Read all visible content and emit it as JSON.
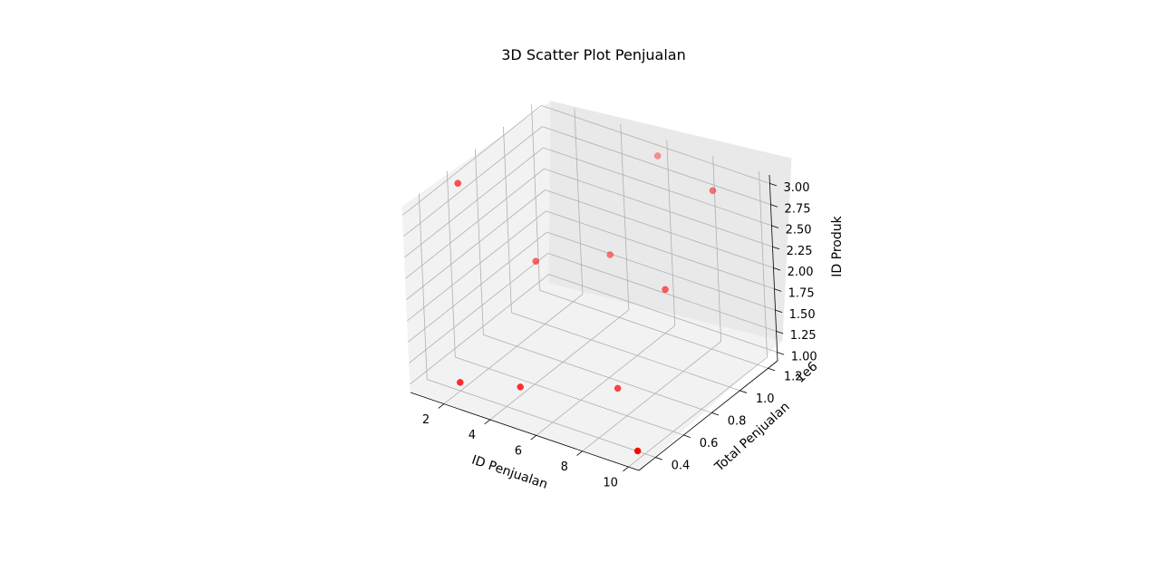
{
  "chart_data": {
    "type": "scatter",
    "projection": "3d",
    "title": "3D Scatter Plot Penjualan",
    "xlabel": "ID Penjualan",
    "ylabel": "Total Penjualan",
    "zlabel": "ID Produk",
    "y_offset_text": "1e6",
    "xticks": [
      "2",
      "4",
      "6",
      "8",
      "10"
    ],
    "yticks": [
      "0.4",
      "0.6",
      "0.8",
      "1.0",
      "1.2"
    ],
    "zticks": [
      "1.00",
      "1.25",
      "1.50",
      "1.75",
      "2.00",
      "2.25",
      "2.50",
      "2.75",
      "3.00"
    ],
    "marker_color": "#ff0000",
    "grid": true,
    "points": [
      {
        "x": 1,
        "y": 600000,
        "z": 3
      },
      {
        "x": 2,
        "y": 400000,
        "z": 1
      },
      {
        "x": 3,
        "y": 800000,
        "z": 2
      },
      {
        "x": 4,
        "y": 500000,
        "z": 1
      },
      {
        "x": 5,
        "y": 1000000,
        "z": 2
      },
      {
        "x": 6,
        "y": 1200000,
        "z": 3
      },
      {
        "x": 7,
        "y": 700000,
        "z": 1
      },
      {
        "x": 8,
        "y": 900000,
        "z": 2
      },
      {
        "x": 9,
        "y": 1100000,
        "z": 3
      },
      {
        "x": 10,
        "y": 350000,
        "z": 1
      }
    ]
  }
}
